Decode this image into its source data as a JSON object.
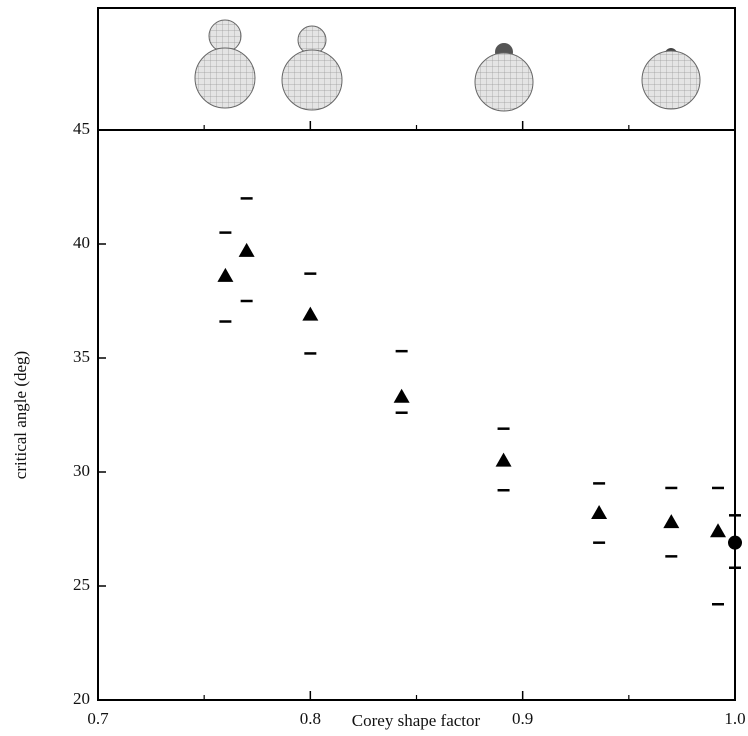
{
  "chart_data": {
    "type": "scatter",
    "xlabel": "Corey shape factor",
    "ylabel": "critical angle (deg)",
    "xlim": [
      0.7,
      1.0
    ],
    "ylim": [
      20,
      45
    ],
    "xticks": [
      0.7,
      0.8,
      0.9,
      {
        "value": 1,
        "label": "1.0"
      }
    ],
    "xminor_ticks": [
      0.75,
      0.85,
      0.95
    ],
    "yticks": [
      20,
      25,
      30,
      35,
      40,
      45
    ],
    "color": "#000000",
    "points": [
      {
        "x": 0.76,
        "y": 38.6,
        "upper": 40.5,
        "lower": 36.6,
        "marker": "triangle"
      },
      {
        "x": 0.77,
        "y": 39.7,
        "upper": 42.0,
        "lower": 37.5,
        "marker": "triangle"
      },
      {
        "x": 0.8,
        "y": 36.9,
        "upper": 38.7,
        "lower": 35.2,
        "marker": "triangle"
      },
      {
        "x": 0.843,
        "y": 33.3,
        "upper": 35.3,
        "lower": 32.6,
        "marker": "triangle"
      },
      {
        "x": 0.891,
        "y": 30.5,
        "upper": 31.9,
        "lower": 29.2,
        "marker": "triangle"
      },
      {
        "x": 0.936,
        "y": 28.2,
        "upper": 29.5,
        "lower": 26.9,
        "marker": "triangle"
      },
      {
        "x": 0.97,
        "y": 27.8,
        "upper": 29.3,
        "lower": 26.3,
        "marker": "triangle"
      },
      {
        "x": 0.992,
        "y": 27.4,
        "upper": 29.3,
        "lower": 24.2,
        "marker": "triangle"
      },
      {
        "x": 1.0,
        "y": 26.9,
        "upper": 28.1,
        "lower": 25.8,
        "marker": "circle"
      }
    ]
  }
}
